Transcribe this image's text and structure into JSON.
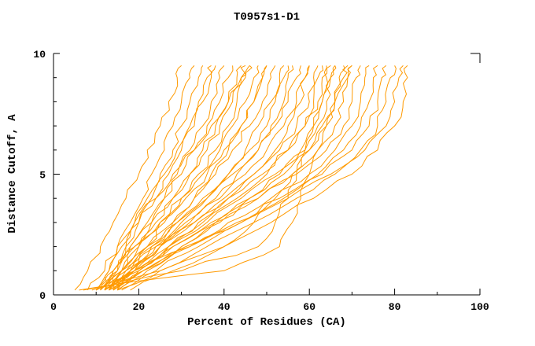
{
  "chart_data": {
    "type": "line",
    "title": "T0957s1-D1",
    "xlabel": "Percent of Residues (CA)",
    "ylabel": "Distance Cutoff, A",
    "xlim": [
      0,
      100
    ],
    "ylim": [
      0,
      10
    ],
    "grid": false,
    "legend": "none",
    "xticks": {
      "major": [
        0,
        20,
        40,
        60,
        80,
        100
      ],
      "minor": [
        10,
        30,
        50,
        70,
        90
      ]
    },
    "yticks": {
      "major": [
        0,
        5,
        10
      ],
      "minor": [
        1,
        2,
        3,
        4,
        6,
        7,
        8,
        9
      ]
    },
    "colors": {
      "line": "#ff9a00",
      "axis": "#000000",
      "text": "#000000"
    },
    "y_common": [
      0.2,
      1,
      2,
      3,
      4,
      5,
      6,
      7,
      8,
      9,
      9.5
    ],
    "series": [
      [
        5,
        8,
        11,
        14,
        17,
        20,
        22,
        25,
        27,
        29,
        30
      ],
      [
        11,
        13,
        15,
        18,
        21,
        23,
        26,
        28,
        30,
        32,
        33
      ],
      [
        13,
        15,
        17,
        19,
        22,
        25,
        28,
        30,
        32,
        34,
        35
      ],
      [
        12,
        14,
        17,
        20,
        23,
        26,
        29,
        32,
        34,
        36,
        37
      ],
      [
        10,
        13,
        16,
        20,
        24,
        27,
        30,
        33,
        35,
        37,
        38
      ],
      [
        14,
        16,
        19,
        23,
        26,
        29,
        32,
        35,
        37,
        39,
        40
      ],
      [
        12,
        15,
        18,
        22,
        26,
        30,
        33,
        36,
        39,
        41,
        42
      ],
      [
        13,
        16,
        20,
        24,
        28,
        32,
        35,
        38,
        41,
        43,
        44
      ],
      [
        11,
        14,
        18,
        23,
        28,
        32,
        36,
        39,
        42,
        44,
        45
      ],
      [
        15,
        18,
        22,
        26,
        30,
        34,
        38,
        41,
        43,
        45,
        46
      ],
      [
        8,
        12,
        15,
        19,
        24,
        28,
        33,
        37,
        41,
        44,
        46
      ],
      [
        12,
        16,
        20,
        25,
        30,
        35,
        39,
        42,
        45,
        47,
        48
      ],
      [
        14,
        18,
        23,
        28,
        33,
        37,
        41,
        44,
        47,
        49,
        50
      ],
      [
        10,
        14,
        19,
        25,
        31,
        36,
        40,
        44,
        47,
        49,
        50
      ],
      [
        13,
        17,
        22,
        28,
        33,
        38,
        42,
        46,
        49,
        51,
        52
      ],
      [
        15,
        19,
        24,
        30,
        36,
        41,
        45,
        48,
        51,
        53,
        54
      ],
      [
        12,
        17,
        23,
        29,
        35,
        41,
        46,
        50,
        52,
        54,
        55
      ],
      [
        14,
        19,
        25,
        31,
        38,
        43,
        48,
        51,
        54,
        55,
        56
      ],
      [
        11,
        16,
        22,
        29,
        36,
        42,
        48,
        52,
        55,
        57,
        58
      ],
      [
        13,
        18,
        25,
        32,
        39,
        45,
        50,
        54,
        57,
        59,
        60
      ],
      [
        15,
        20,
        27,
        34,
        41,
        47,
        52,
        55,
        58,
        59,
        60
      ],
      [
        12,
        18,
        25,
        33,
        40,
        47,
        53,
        57,
        60,
        61,
        62
      ],
      [
        14,
        20,
        27,
        35,
        43,
        50,
        55,
        59,
        61,
        62,
        63
      ],
      [
        10,
        16,
        24,
        33,
        41,
        49,
        55,
        59,
        62,
        63,
        64
      ],
      [
        13,
        19,
        27,
        36,
        44,
        52,
        58,
        61,
        63,
        64,
        65
      ],
      [
        15,
        22,
        30,
        38,
        46,
        53,
        59,
        62,
        64,
        65,
        66
      ],
      [
        12,
        19,
        28,
        37,
        46,
        54,
        60,
        64,
        66,
        67,
        68
      ],
      [
        14,
        21,
        30,
        39,
        48,
        56,
        62,
        66,
        68,
        69,
        70
      ],
      [
        11,
        19,
        28,
        38,
        48,
        57,
        64,
        68,
        70,
        71,
        72
      ],
      [
        13,
        21,
        31,
        41,
        51,
        60,
        66,
        70,
        72,
        73,
        74
      ],
      [
        16,
        24,
        34,
        44,
        54,
        62,
        68,
        72,
        74,
        75,
        76
      ],
      [
        12,
        21,
        32,
        43,
        53,
        63,
        70,
        74,
        76,
        77,
        78
      ],
      [
        15,
        25,
        36,
        47,
        57,
        66,
        72,
        76,
        78,
        79,
        80
      ],
      [
        10,
        20,
        32,
        44,
        55,
        65,
        73,
        78,
        80,
        81,
        82
      ],
      [
        18,
        28,
        40,
        51,
        61,
        70,
        76,
        80,
        82,
        83,
        83
      ],
      [
        6,
        40,
        53,
        56,
        58,
        60,
        62,
        64,
        66,
        68,
        69
      ],
      [
        7,
        30,
        48,
        52,
        55,
        57,
        59,
        61,
        63,
        65,
        66
      ],
      [
        9,
        25,
        40,
        47,
        52,
        56,
        60,
        63,
        66,
        69,
        70
      ]
    ]
  }
}
